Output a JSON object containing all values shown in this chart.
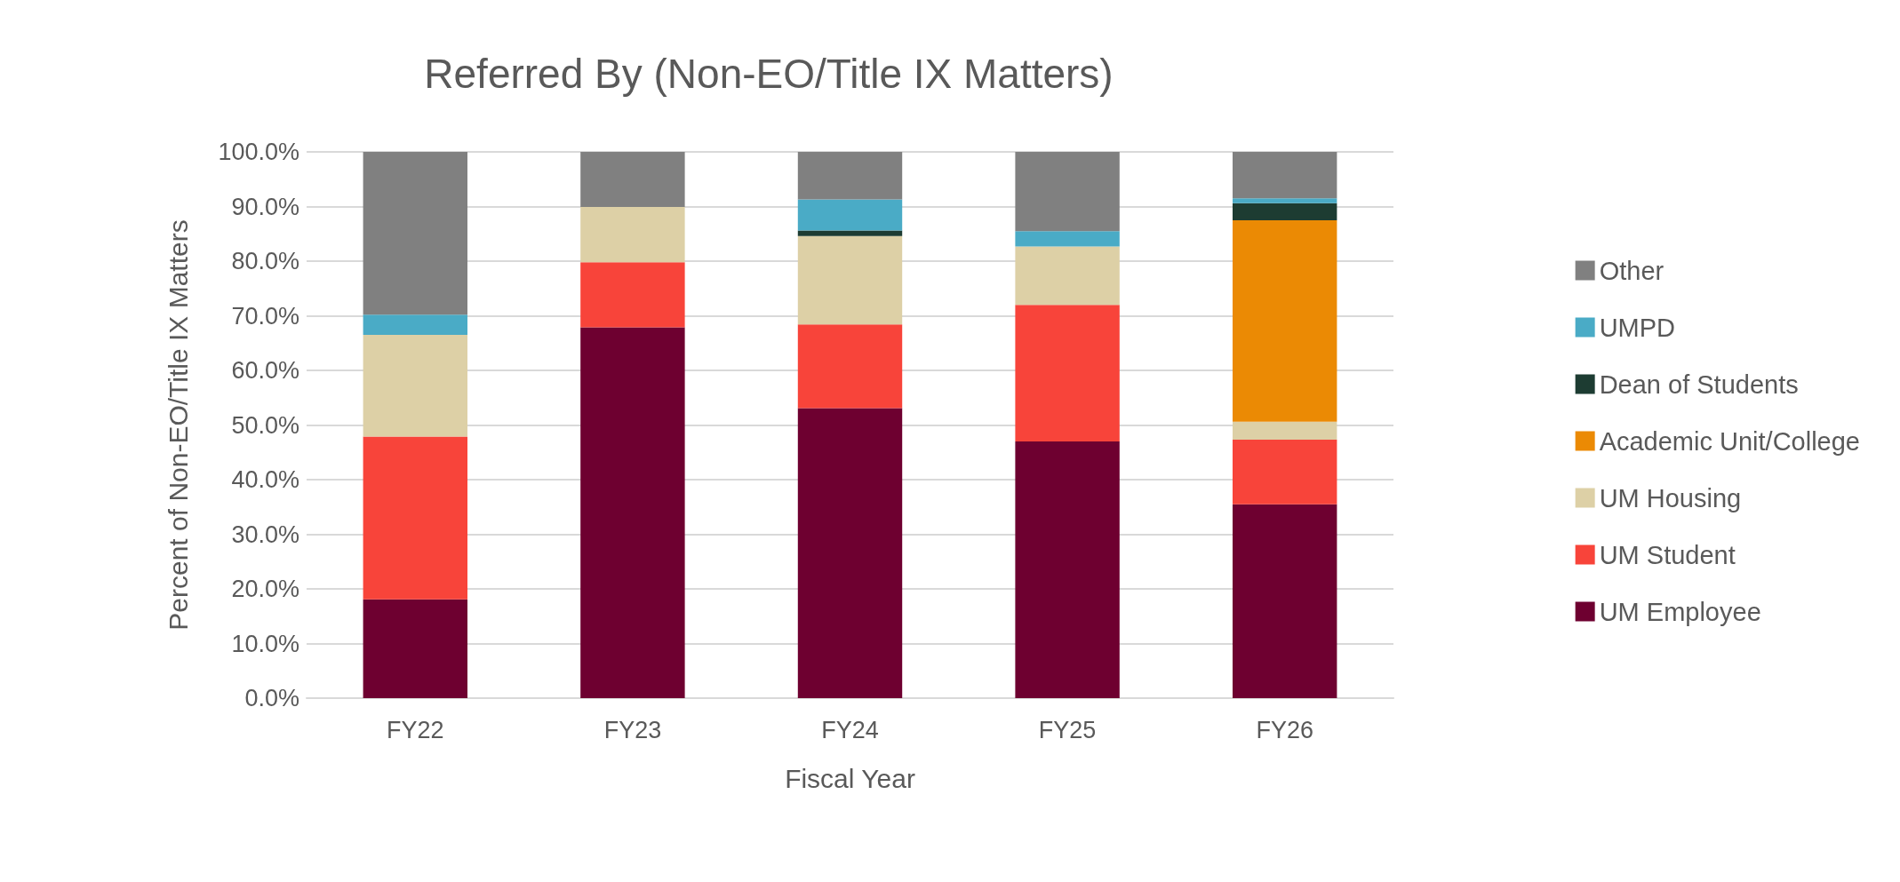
{
  "chart_data": {
    "type": "bar",
    "title": "Referred By (Non-EO/Title IX Matters)",
    "xlabel": "Fiscal Year",
    "ylabel": "Percent of Non-EO/Title IX Matters",
    "categories": [
      "FY22",
      "FY23",
      "FY24",
      "FY25",
      "FY26"
    ],
    "stacked": true,
    "grid": "y",
    "legend": "right",
    "ylim": [
      0,
      100
    ],
    "yticks": [
      {
        "value": 0,
        "label": "0.0%"
      },
      {
        "value": 10,
        "label": "10.0%"
      },
      {
        "value": 20,
        "label": "20.0%"
      },
      {
        "value": 30,
        "label": "30.0%"
      },
      {
        "value": 40,
        "label": "40.0%"
      },
      {
        "value": 50,
        "label": "50.0%"
      },
      {
        "value": 60,
        "label": "60.0%"
      },
      {
        "value": 70,
        "label": "70.0%"
      },
      {
        "value": 80,
        "label": "80.0%"
      },
      {
        "value": 90,
        "label": "90.0%"
      },
      {
        "value": 100,
        "label": "100.0%"
      }
    ],
    "series": [
      {
        "name": "UM Employee",
        "color": "#6e0030",
        "values": [
          18.1,
          67.9,
          53.1,
          47.0,
          35.5
        ]
      },
      {
        "name": "UM Student",
        "color": "#f8443a",
        "values": [
          29.8,
          11.9,
          15.3,
          25.0,
          11.8
        ]
      },
      {
        "name": "UM Housing",
        "color": "#ddd0a6",
        "values": [
          18.6,
          10.1,
          16.2,
          10.7,
          3.3
        ]
      },
      {
        "name": "Academic Unit/College",
        "color": "#eb8a04",
        "values": [
          0,
          0,
          0,
          0,
          36.9
        ]
      },
      {
        "name": "Dean of Students",
        "color": "#1d3c32",
        "values": [
          0,
          0,
          1.0,
          0,
          3.1
        ]
      },
      {
        "name": "UMPD",
        "color": "#4aabc6",
        "values": [
          3.7,
          0,
          5.7,
          2.8,
          0.9
        ]
      },
      {
        "name": "Other",
        "color": "#808080",
        "values": [
          29.8,
          10.1,
          8.7,
          14.5,
          8.5
        ]
      }
    ]
  }
}
